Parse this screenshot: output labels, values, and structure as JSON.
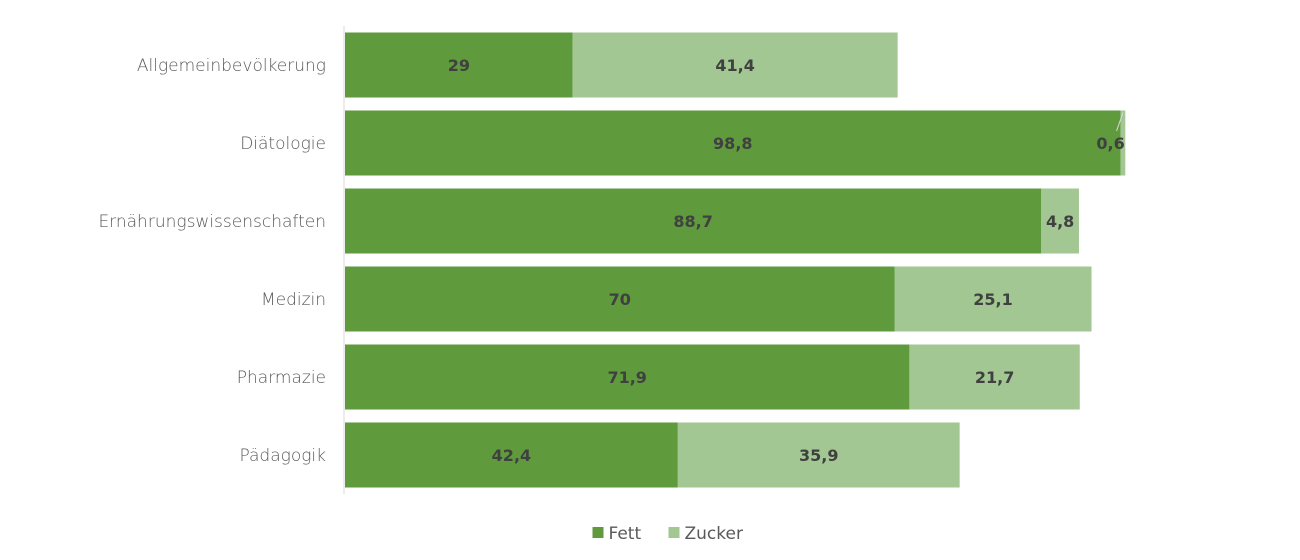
{
  "chart_data": {
    "type": "bar",
    "orientation": "horizontal",
    "stacked": true,
    "categories": [
      "Allgemeinbevölkerung",
      "Diätologie",
      "Ernährungswissenschaften",
      "Medizin",
      "Pharmazie",
      "Pädagogik"
    ],
    "series": [
      {
        "name": "Fett",
        "color": "#5f9a3d",
        "values": [
          29,
          98.8,
          88.7,
          70,
          71.9,
          42.4
        ],
        "labels": [
          "29",
          "98,8",
          "88,7",
          "70",
          "71,9",
          "42,4"
        ]
      },
      {
        "name": "Zucker",
        "color": "#a2c793",
        "values": [
          41.4,
          0.6,
          4.8,
          25.1,
          21.7,
          35.9
        ],
        "labels": [
          "41,4",
          "0,6",
          "4,8",
          "25,1",
          "21,7",
          "35,9"
        ]
      }
    ],
    "xlim": [
      0,
      100
    ],
    "grid": false,
    "legend_position": "bottom"
  }
}
